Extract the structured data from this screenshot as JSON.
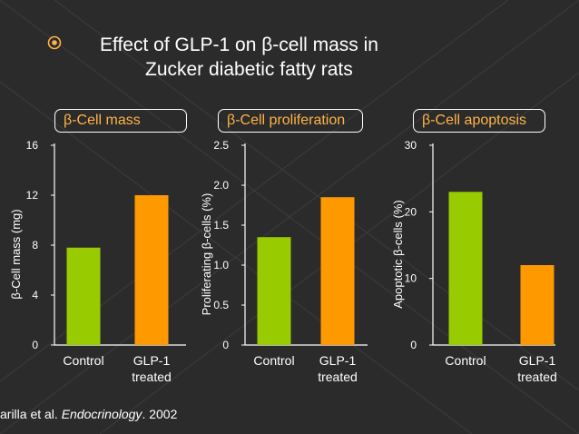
{
  "title_line1": "Effect of GLP-1 on β-cell mass in",
  "title_line2": "Zucker diabetic fatty rats",
  "citation": {
    "prefix": "arilla et al. ",
    "journal": "Endocrinology",
    "suffix": ". 2002"
  },
  "colors": {
    "background": "#2b2b2b",
    "control": "#99cc00",
    "glp1": "#ff9900",
    "label_text": "#ffb347",
    "axis": "#ffffff"
  },
  "chart_data": [
    {
      "type": "bar",
      "title": "β-Cell mass",
      "categories": [
        [
          "Control"
        ],
        [
          "GLP-1",
          "treated"
        ]
      ],
      "values": [
        7.8,
        12.0
      ],
      "ylabel": "β-Cell mass (mg)",
      "ylim": [
        0,
        16
      ],
      "yticks": [
        "0",
        "4",
        "8",
        "12",
        "16"
      ],
      "grid": false
    },
    {
      "type": "bar",
      "title": "β-Cell proliferation",
      "categories": [
        [
          "Control"
        ],
        [
          "GLP-1",
          "treated"
        ]
      ],
      "values": [
        1.35,
        1.85
      ],
      "ylabel": "Proliferating β-cells (%)",
      "ylim": [
        0,
        2.5
      ],
      "yticks": [
        "0",
        "0.5",
        "1.0",
        "1.5",
        "2.0",
        "2.5"
      ],
      "grid": false
    },
    {
      "type": "bar",
      "title": "β-Cell apoptosis",
      "categories": [
        [
          "Control"
        ],
        [
          "GLP-1",
          "treated"
        ]
      ],
      "values": [
        23,
        12
      ],
      "ylabel": "Apoptotic β-cells (%)",
      "ylim": [
        0,
        30
      ],
      "yticks": [
        "0",
        "10",
        "20",
        "30"
      ],
      "grid": false
    }
  ]
}
